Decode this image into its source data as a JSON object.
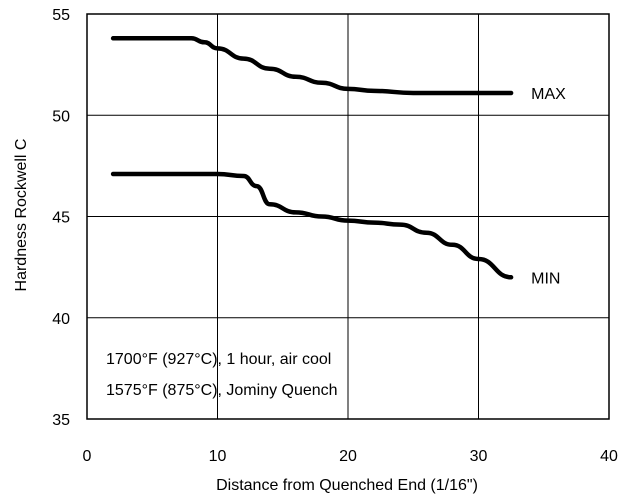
{
  "chart_data": {
    "type": "line",
    "xlabel": "Distance from Quenched End (1/16\")",
    "ylabel": "Hardness Rockwell C",
    "xlim": [
      0,
      40
    ],
    "ylim": [
      35,
      55
    ],
    "xticks": [
      "0",
      "10",
      "20",
      "30",
      "40"
    ],
    "yticks": [
      "35",
      "40",
      "45",
      "50",
      "55"
    ],
    "grid": true,
    "annotations": [
      "1700°F (927°C), 1 hour, air cool",
      "1575°F (875°C), Jominy Quench"
    ],
    "series": [
      {
        "name": "MAX",
        "x": [
          2,
          4,
          6,
          8,
          9,
          10,
          12,
          14,
          16,
          18,
          20,
          22,
          25,
          28,
          32.5
        ],
        "y": [
          53.8,
          53.8,
          53.8,
          53.8,
          53.6,
          53.3,
          52.8,
          52.3,
          51.9,
          51.6,
          51.3,
          51.2,
          51.1,
          51.1,
          51.1
        ]
      },
      {
        "name": "MIN",
        "x": [
          2,
          5,
          8,
          10,
          12,
          13,
          14,
          16,
          18,
          20,
          22,
          24,
          26,
          28,
          30,
          32.5
        ],
        "y": [
          47.1,
          47.1,
          47.1,
          47.1,
          47.0,
          46.5,
          45.6,
          45.2,
          45.0,
          44.8,
          44.7,
          44.6,
          44.2,
          43.6,
          42.9,
          42.0
        ]
      }
    ]
  }
}
